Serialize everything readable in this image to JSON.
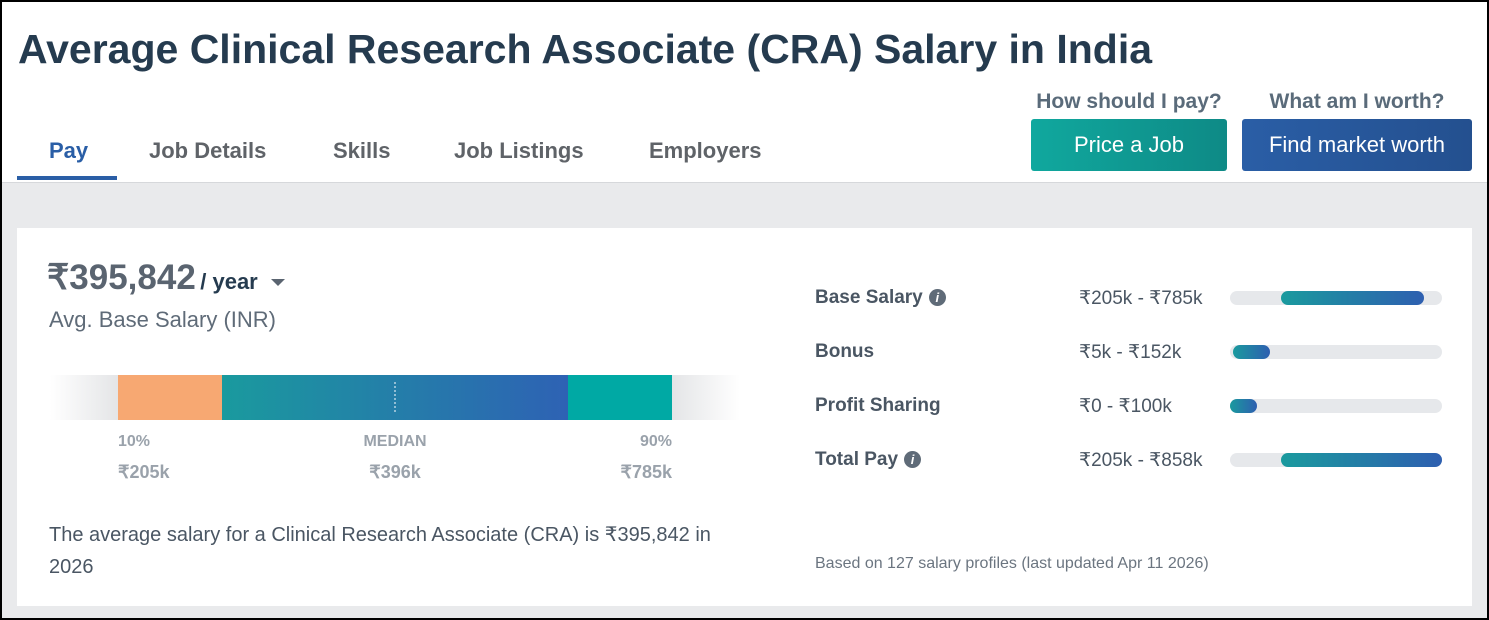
{
  "header": {
    "title": "Average Clinical Research Associate (CRA) Salary in India"
  },
  "nav": {
    "tabs": [
      "Pay",
      "Job Details",
      "Skills",
      "Job Listings",
      "Employers"
    ]
  },
  "actions": [
    {
      "question": "How should I pay?",
      "button": "Price a Job"
    },
    {
      "question": "What am I worth?",
      "button": "Find market worth"
    }
  ],
  "summary": {
    "amount": "₹395,842",
    "period": "/ year",
    "label": "Avg. Base Salary (INR)"
  },
  "distribution": {
    "low": {
      "label": "10%",
      "value": "₹205k"
    },
    "median": {
      "label": "MEDIAN",
      "value": "₹396k"
    },
    "high": {
      "label": "90%",
      "value": "₹785k"
    }
  },
  "description": "The average salary for a Clinical Research Associate (CRA) is ₹395,842 in 2026",
  "breakdown": {
    "rows": [
      {
        "label": "Base Salary",
        "range": "₹205k - ₹785k"
      },
      {
        "label": "Bonus",
        "range": "₹5k - ₹152k"
      },
      {
        "label": "Profit Sharing",
        "range": "₹0 - ₹100k"
      },
      {
        "label": "Total Pay",
        "range": "₹205k - ₹858k"
      }
    ]
  },
  "footnote": "Based on 127 salary profiles (last updated Apr 11 2026)"
}
